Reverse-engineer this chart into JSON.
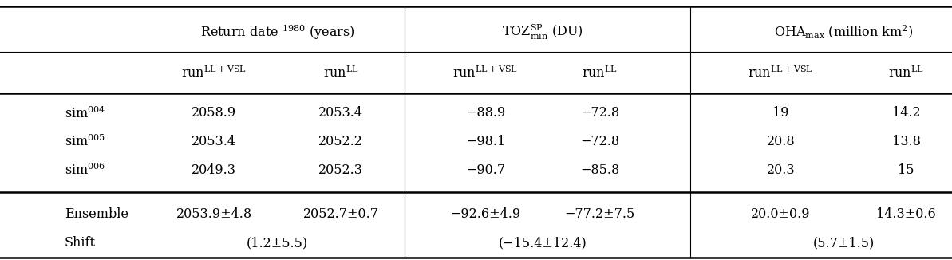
{
  "figsize": [
    11.93,
    3.26
  ],
  "dpi": 100,
  "bg_color": "#ffffff",
  "rows": [
    {
      "label": "sim$^{004}$",
      "v1": "2058.9",
      "v2": "2053.4",
      "v3": "−88.9",
      "v4": "−72.8",
      "v5": "19",
      "v6": "14.2"
    },
    {
      "label": "sim$^{005}$",
      "v1": "2053.4",
      "v2": "2052.2",
      "v3": "−98.1",
      "v4": "−72.8",
      "v5": "20.8",
      "v6": "13.8"
    },
    {
      "label": "sim$^{006}$",
      "v1": "2049.3",
      "v2": "2052.3",
      "v3": "−90.7",
      "v4": "−85.8",
      "v5": "20.3",
      "v6": "15"
    }
  ],
  "ensemble": {
    "label1": "Ensemble",
    "label2": "Shift",
    "v1": "2053.9±4.8",
    "v2": "2052.7±0.7",
    "v1b": "(1.2±5.5)",
    "v3": "−92.6±4.9",
    "v4": "−77.2±7.5",
    "v3b": "(−15.4±12.4)",
    "v5": "20.0±0.9",
    "v6": "14.3±0.6",
    "v5b": "(5.7±1.5)"
  },
  "col_x": {
    "label": 0.068,
    "c2a": 0.225,
    "c2b": 0.358,
    "c3a": 0.51,
    "c3b": 0.63,
    "c4a": 0.82,
    "c4b": 0.952
  },
  "vline_x": [
    0.425,
    0.725
  ],
  "font_size": 11.5,
  "font_family": "DejaVu Serif"
}
